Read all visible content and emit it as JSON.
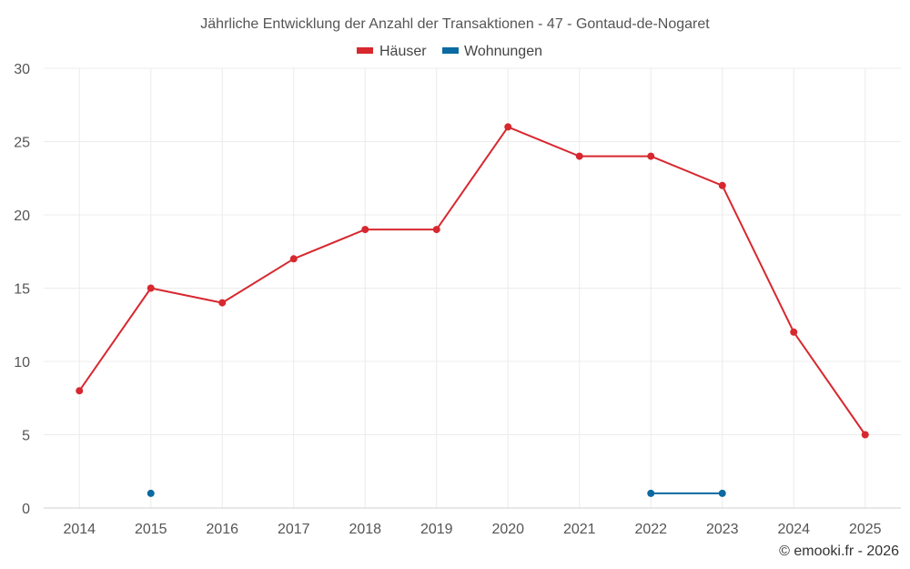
{
  "chart_data": {
    "type": "line",
    "title": "Jährliche Entwicklung der Anzahl der Transaktionen - 47 - Gontaud-de-Nogaret",
    "categories": [
      "2014",
      "2015",
      "2016",
      "2017",
      "2018",
      "2019",
      "2020",
      "2021",
      "2022",
      "2023",
      "2024",
      "2025"
    ],
    "series": [
      {
        "name": "Häuser",
        "color": "#d7282f",
        "values": [
          8,
          15,
          14,
          17,
          19,
          19,
          26,
          24,
          24,
          22,
          12,
          5
        ]
      },
      {
        "name": "Wohnungen",
        "color": "#0b6aa2",
        "values": [
          null,
          1,
          null,
          null,
          null,
          null,
          null,
          null,
          1,
          1,
          null,
          null
        ]
      }
    ],
    "ylim": [
      0,
      30
    ],
    "yticks": [
      "0",
      "5",
      "10",
      "15",
      "20",
      "25",
      "30"
    ],
    "xlabel": "",
    "ylabel": "",
    "grid": true,
    "legend_position": "top-center"
  },
  "credit": "© emooki.fr - 2026"
}
